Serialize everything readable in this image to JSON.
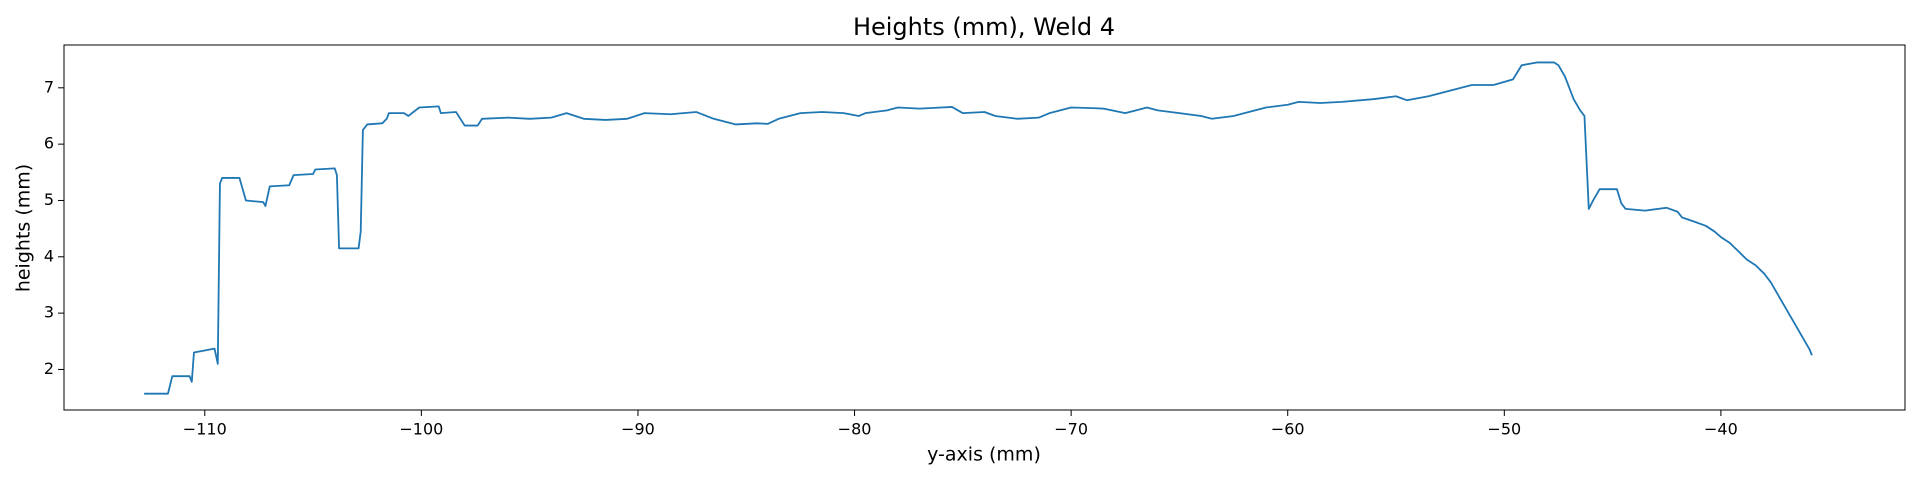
{
  "chart_data": {
    "type": "line",
    "title": "Heights (mm), Weld 4",
    "xlabel": "y-axis (mm)",
    "ylabel": "heights (mm)",
    "color": "#1f77b4",
    "x": [
      -112.8,
      -111.7,
      -111.5,
      -110.7,
      -110.6,
      -110.5,
      -109.55,
      -109.4,
      -109.3,
      -109.2,
      -108.4,
      -108.1,
      -107.3,
      -107.2,
      -107.0,
      -106.1,
      -105.9,
      -105.0,
      -104.9,
      -104.0,
      -103.9,
      -103.8,
      -102.9,
      -102.8,
      -102.7,
      -102.5,
      -101.8,
      -101.6,
      -101.5,
      -100.8,
      -100.6,
      -100.1,
      -99.2,
      -99.1,
      -98.4,
      -98.2,
      -98.0,
      -97.4,
      -97.2,
      -96.0,
      -95.0,
      -94.0,
      -93.3,
      -92.5,
      -91.5,
      -90.5,
      -89.7,
      -88.5,
      -87.3,
      -86.5,
      -85.5,
      -84.5,
      -84.0,
      -83.5,
      -82.5,
      -81.5,
      -80.5,
      -79.8,
      -79.5,
      -78.5,
      -78.0,
      -77.0,
      -76.0,
      -75.5,
      -75.0,
      -74.0,
      -73.5,
      -72.5,
      -71.5,
      -71.0,
      -70.0,
      -69.0,
      -68.5,
      -67.5,
      -66.5,
      -66.0,
      -65.0,
      -64.0,
      -63.5,
      -62.5,
      -62.0,
      -61.0,
      -60.0,
      -59.5,
      -58.5,
      -57.5,
      -56.0,
      -55.0,
      -54.5,
      -53.5,
      -52.5,
      -51.5,
      -50.5,
      -49.6,
      -49.2,
      -48.5,
      -47.7,
      -47.5,
      -47.2,
      -47.0,
      -46.8,
      -46.5,
      -46.3,
      -46.1,
      -45.9,
      -45.6,
      -44.8,
      -44.6,
      -44.4,
      -43.5,
      -42.5,
      -42.0,
      -41.8,
      -41.2,
      -40.7,
      -40.3,
      -40.0,
      -39.6,
      -39.2,
      -38.8,
      -38.4,
      -38.0,
      -37.7,
      -37.4,
      -37.1,
      -36.8,
      -36.5,
      -36.2,
      -35.9,
      -35.8
    ],
    "values": [
      1.57,
      1.57,
      1.88,
      1.88,
      1.78,
      2.3,
      2.37,
      2.1,
      5.3,
      5.4,
      5.4,
      5.0,
      4.97,
      4.9,
      5.25,
      5.27,
      5.45,
      5.47,
      5.55,
      5.57,
      5.45,
      4.15,
      4.15,
      4.45,
      6.25,
      6.35,
      6.37,
      6.45,
      6.55,
      6.55,
      6.5,
      6.65,
      6.67,
      6.55,
      6.57,
      6.45,
      6.33,
      6.33,
      6.45,
      6.47,
      6.45,
      6.47,
      6.55,
      6.45,
      6.43,
      6.45,
      6.55,
      6.53,
      6.57,
      6.45,
      6.35,
      6.37,
      6.36,
      6.45,
      6.55,
      6.57,
      6.55,
      6.5,
      6.55,
      6.6,
      6.65,
      6.63,
      6.65,
      6.66,
      6.55,
      6.57,
      6.5,
      6.45,
      6.47,
      6.55,
      6.65,
      6.64,
      6.63,
      6.55,
      6.65,
      6.6,
      6.55,
      6.5,
      6.45,
      6.5,
      6.55,
      6.65,
      6.7,
      6.75,
      6.73,
      6.75,
      6.8,
      6.85,
      6.78,
      6.85,
      6.95,
      7.05,
      7.05,
      7.15,
      7.4,
      7.45,
      7.45,
      7.4,
      7.2,
      7.0,
      6.8,
      6.6,
      6.5,
      4.85,
      5.0,
      5.2,
      5.2,
      4.95,
      4.85,
      4.82,
      4.87,
      4.8,
      4.7,
      4.62,
      4.55,
      4.45,
      4.35,
      4.25,
      4.1,
      3.95,
      3.85,
      3.7,
      3.55,
      3.35,
      3.15,
      2.95,
      2.75,
      2.55,
      2.35,
      2.25
    ],
    "xlim": [
      -116.5,
      -31.5
    ],
    "ylim": [
      1.28,
      7.76
    ],
    "xticks": [
      {
        "value": -110,
        "label": "−110"
      },
      {
        "value": -100,
        "label": "−100"
      },
      {
        "value": -90,
        "label": "−90"
      },
      {
        "value": -80,
        "label": "−80"
      },
      {
        "value": -70,
        "label": "−70"
      },
      {
        "value": -60,
        "label": "−60"
      },
      {
        "value": -50,
        "label": "−50"
      },
      {
        "value": -40,
        "label": "−40"
      }
    ],
    "yticks": [
      2,
      3,
      4,
      5,
      6,
      7
    ]
  }
}
